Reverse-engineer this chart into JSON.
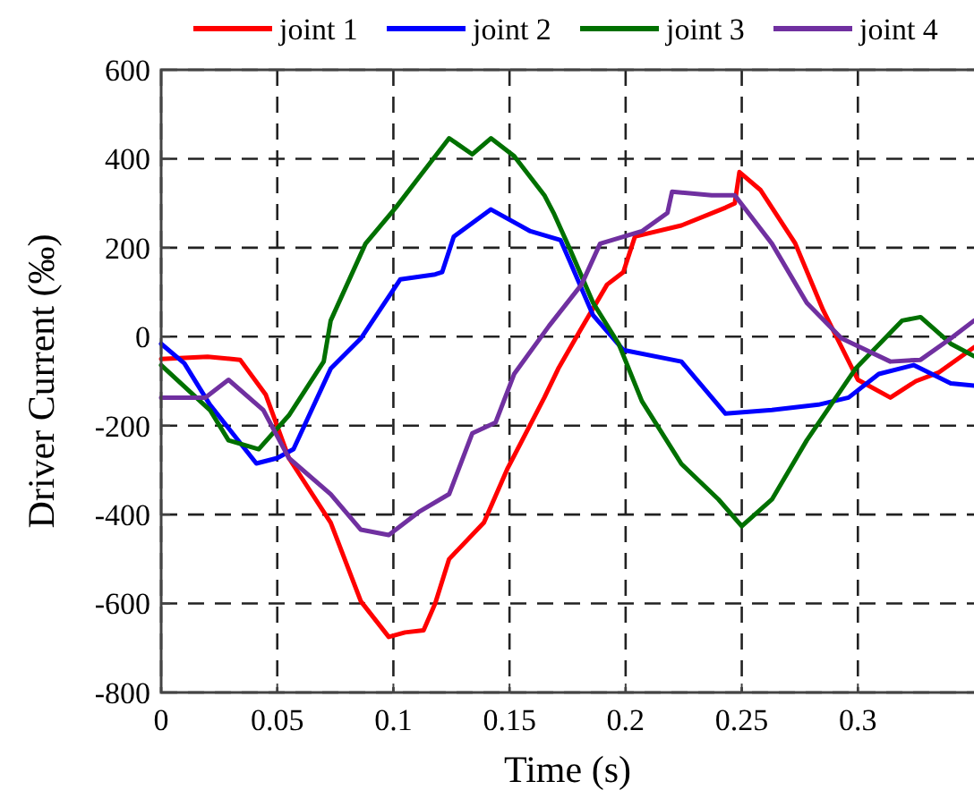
{
  "chart_data": {
    "type": "line",
    "xlabel": "Time (s)",
    "ylabel": "Driver Current (‰)",
    "xlim": [
      0,
      0.35
    ],
    "xticks": [
      0,
      0.05,
      0.1,
      0.15,
      0.2,
      0.25,
      0.3
    ],
    "ylim": [
      -800,
      600
    ],
    "yticks": [
      -800,
      -600,
      -400,
      -200,
      0,
      200,
      400,
      600
    ],
    "grid": true,
    "legend": "top",
    "line_style": "solid",
    "marker": "none",
    "series": [
      {
        "name": "joint 1",
        "color": "#ff0000",
        "x": [
          0,
          0.02,
          0.034,
          0.045,
          0.055,
          0.073,
          0.086,
          0.098,
          0.105,
          0.113,
          0.118,
          0.124,
          0.139,
          0.149,
          0.165,
          0.171,
          0.18,
          0.192,
          0.199,
          0.204,
          0.224,
          0.243,
          0.247,
          0.249,
          0.258,
          0.273,
          0.285,
          0.3,
          0.314,
          0.325,
          0.335,
          0.35
        ],
        "values": [
          -50,
          -45,
          -52,
          -130,
          -273,
          -418,
          -595,
          -675,
          -665,
          -660,
          -600,
          -500,
          -418,
          -298,
          -137,
          -72,
          10,
          117,
          145,
          225,
          250,
          290,
          300,
          370,
          330,
          210,
          60,
          -97,
          -137,
          -100,
          -80,
          -24
        ]
      },
      {
        "name": "joint 2",
        "color": "#0000ff",
        "x": [
          0,
          0.01,
          0.021,
          0.041,
          0.05,
          0.057,
          0.073,
          0.086,
          0.103,
          0.118,
          0.121,
          0.126,
          0.142,
          0.159,
          0.172,
          0.176,
          0.186,
          0.199,
          0.224,
          0.243,
          0.263,
          0.283,
          0.296,
          0.309,
          0.324,
          0.34,
          0.35
        ],
        "values": [
          -16,
          -60,
          -153,
          -285,
          -273,
          -253,
          -72,
          -4,
          129,
          140,
          145,
          225,
          286,
          237,
          217,
          169,
          48,
          -30,
          -56,
          -173,
          -165,
          -153,
          -137,
          -84,
          -64,
          -105,
          -110
        ]
      },
      {
        "name": "joint 3",
        "color": "#007000",
        "x": [
          0,
          0.021,
          0.029,
          0.042,
          0.055,
          0.07,
          0.073,
          0.088,
          0.101,
          0.111,
          0.124,
          0.134,
          0.142,
          0.152,
          0.165,
          0.169,
          0.176,
          0.186,
          0.197,
          0.207,
          0.224,
          0.24,
          0.25,
          0.263,
          0.278,
          0.299,
          0.319,
          0.327,
          0.34,
          0.35
        ],
        "values": [
          -64,
          -165,
          -233,
          -253,
          -177,
          -56,
          36,
          209,
          290,
          358,
          446,
          410,
          446,
          406,
          318,
          278,
          197,
          76,
          -16,
          -145,
          -286,
          -366,
          -426,
          -366,
          -233,
          -72,
          36,
          44,
          -16,
          -44
        ]
      },
      {
        "name": "joint 4",
        "color": "#7030a0",
        "x": [
          0,
          0.019,
          0.029,
          0.044,
          0.055,
          0.073,
          0.086,
          0.098,
          0.111,
          0.124,
          0.134,
          0.144,
          0.152,
          0.167,
          0.181,
          0.189,
          0.207,
          0.218,
          0.22,
          0.237,
          0.247,
          0.263,
          0.278,
          0.293,
          0.314,
          0.327,
          0.34,
          0.35
        ],
        "values": [
          -137,
          -137,
          -97,
          -165,
          -273,
          -354,
          -434,
          -446,
          -394,
          -354,
          -217,
          -193,
          -84,
          24,
          117,
          209,
          237,
          278,
          326,
          318,
          318,
          209,
          76,
          -4,
          -56,
          -52,
          -4,
          36
        ]
      }
    ]
  }
}
